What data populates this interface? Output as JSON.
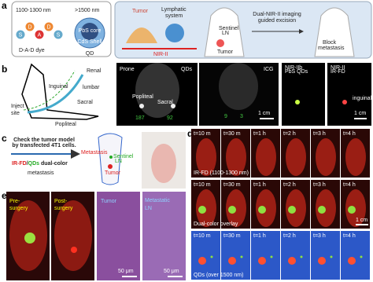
{
  "panel_a": {
    "letter": "a",
    "dye_wavelength": "1100-1300 nm",
    "qd_wavelength": ">1500 nm",
    "dye_units": [
      "S",
      "D",
      "A",
      "D",
      "S"
    ],
    "dye_label": "D-A-D dye",
    "qd_label": "QD",
    "qd_core": "PbS core",
    "qd_shell": "CdS Shell",
    "tumor": "Tumor",
    "lymphatic_system": [
      "Lymphatic",
      "system"
    ],
    "nir": "NIR-II",
    "excision": [
      "Dual-NIR-II imaging",
      "guided excision"
    ],
    "sentinel_ln": [
      "Sentinel",
      "LN"
    ],
    "tumor_2": "Tumor",
    "block": [
      "Block",
      "metastasis"
    ]
  },
  "panel_b": {
    "letter": "b",
    "diagram": {
      "renal": "Renal",
      "lumbar": "lumbar",
      "inguinal": "Inguinal",
      "sacral": "Sacral",
      "inject_site": [
        "Inject",
        "site"
      ],
      "popliteal": "Popliteal"
    },
    "qds_image": {
      "prone": "Prone",
      "qds": "QDs",
      "popliteal": "Popliteal",
      "sacral": "Sacral",
      "counts": [
        187,
        92
      ]
    },
    "icg_image": {
      "icg": "ICG",
      "counts": [
        9,
        3
      ],
      "scale": "1 cm"
    },
    "pbs_image": {
      "label": [
        "NIR-IIb",
        "PbS QDs"
      ]
    },
    "irfd_image": {
      "label": [
        "NIR-II",
        "IR-FD"
      ],
      "inguinal": "inguinal",
      "scale": "1 cm"
    }
  },
  "panel_c": {
    "letter": "c",
    "check": [
      "Check the tumor model",
      "by transfected 4T1 cells."
    ],
    "dual_color": [
      "IR-FD",
      "/",
      "QDs",
      " dual-color"
    ],
    "metastasis": "metastasis",
    "diagram": {
      "metastasis": "Metastasis",
      "sentinel_ln": [
        "Sentinel",
        "LN"
      ],
      "tumor": "Tumor"
    }
  },
  "panel_d": {
    "letter": "d",
    "times": [
      "t=10 m",
      "t=30 m",
      "t=1 h",
      "t=2 h",
      "t=3 h",
      "t=4 h"
    ],
    "rows": [
      "IR-FD (1100-1300 nm)",
      "Dual-color overlay",
      "QDs (over 1500 nm)"
    ],
    "scale": "1 cm"
  },
  "panel_e": {
    "letter": "e",
    "pre": [
      "Pre-",
      "surgery"
    ],
    "post": [
      "Post-",
      "surgery"
    ],
    "tumor": "Tumor",
    "metastatic": [
      "Metastatic",
      "LN"
    ],
    "scale": "50 μm"
  }
}
